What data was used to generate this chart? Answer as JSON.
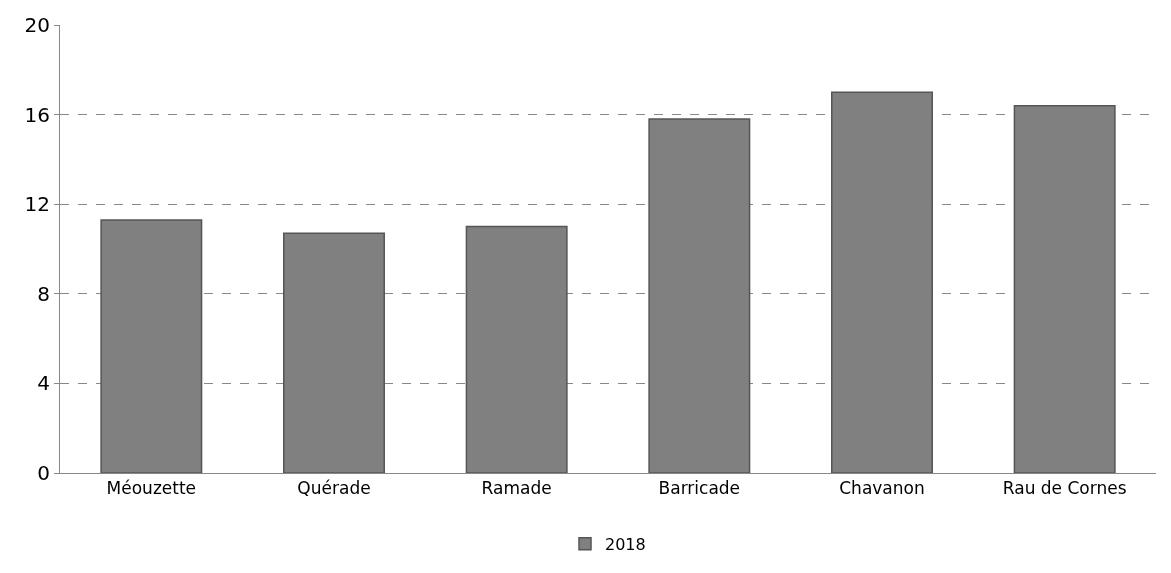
{
  "chart_data": {
    "type": "bar",
    "categories": [
      "Méouzette",
      "Quérade",
      "Ramade",
      "Barricade",
      "Chavanon",
      "Rau de Cornes"
    ],
    "series": [
      {
        "name": "2018",
        "color": "#808080",
        "values": [
          11.3,
          10.7,
          11.0,
          15.8,
          17.0,
          16.4
        ]
      }
    ],
    "ylim": [
      0,
      20
    ],
    "yticks": [
      0,
      4,
      8,
      12,
      16,
      20
    ],
    "grid": "y",
    "legend": "bottom"
  }
}
